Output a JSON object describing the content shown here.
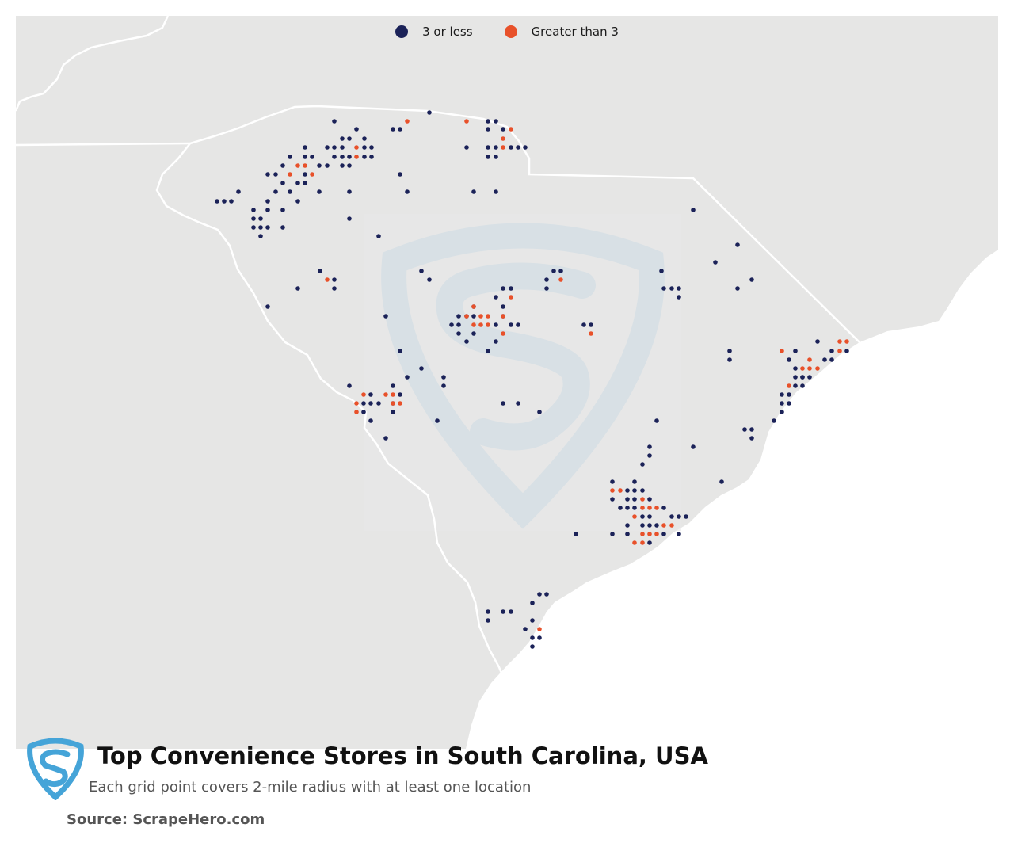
{
  "legend": {
    "items": [
      {
        "label": "3 or less",
        "color": "#1b2258"
      },
      {
        "label": "Greater than 3",
        "color": "#e8512a"
      }
    ]
  },
  "title": "Top Convenience Stores in South Carolina, USA",
  "subtitle": "Each grid point covers 2-mile radius with at least one location",
  "source": "Source: ScrapeHero.com",
  "colors": {
    "land": "#e6e6e5",
    "ocean": "#ffffff",
    "border": "#ffffff",
    "low": "#1b2258",
    "high": "#e8512a",
    "watermark": "#cfdde6",
    "brand": "#45a4d8"
  }
}
